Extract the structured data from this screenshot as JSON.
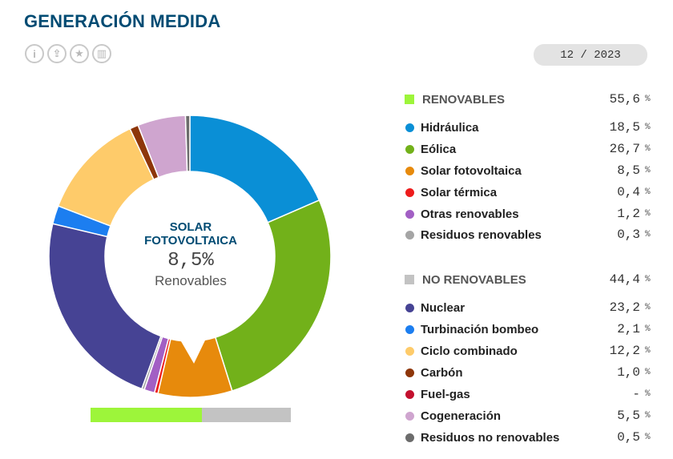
{
  "page": {
    "title": "GENERACIÓN MEDIDA",
    "period": "12 / 2023"
  },
  "toolbar": [
    {
      "name": "info-icon",
      "glyph": "i"
    },
    {
      "name": "download-icon",
      "glyph": "⇪"
    },
    {
      "name": "star-icon",
      "glyph": "★"
    },
    {
      "name": "chart-icon",
      "glyph": "▥"
    }
  ],
  "colors": {
    "title": "#004b73",
    "renovables": "#9df53a",
    "no_renovables": "#c3c3c3"
  },
  "center": {
    "name_line1": "SOLAR",
    "name_line2": "FOTOVOLTAICA",
    "value": "8,5%",
    "group": "Renovables"
  },
  "ratio": {
    "renovables": 55.6,
    "no_renovables": 44.4
  },
  "legend": {
    "groups": [
      {
        "label": "RENOVABLES",
        "value": "55,6",
        "unit": "%",
        "color": "#9df53a",
        "items": [
          {
            "label": "Hidráulica",
            "value": "18,5",
            "unit": "%",
            "color": "#0a8fd6"
          },
          {
            "label": "Eólica",
            "value": "26,7",
            "unit": "%",
            "color": "#72b11a"
          },
          {
            "label": "Solar fotovoltaica",
            "value": "8,5",
            "unit": "%",
            "color": "#e78a0c"
          },
          {
            "label": "Solar térmica",
            "value": "0,4",
            "unit": "%",
            "color": "#ee1c1c"
          },
          {
            "label": "Otras renovables",
            "value": "1,2",
            "unit": "%",
            "color": "#a25fc4"
          },
          {
            "label": "Residuos renovables",
            "value": "0,3",
            "unit": "%",
            "color": "#a5a5a5"
          }
        ]
      },
      {
        "label": "NO RENOVABLES",
        "value": "44,4",
        "unit": "%",
        "color": "#c3c3c3",
        "items": [
          {
            "label": "Nuclear",
            "value": "23,2",
            "unit": "%",
            "color": "#464394"
          },
          {
            "label": "Turbinación bombeo",
            "value": "2,1",
            "unit": "%",
            "color": "#1c7ef0"
          },
          {
            "label": "Ciclo combinado",
            "value": "12,2",
            "unit": "%",
            "color": "#fecb6a"
          },
          {
            "label": "Carbón",
            "value": "1,0",
            "unit": "%",
            "color": "#8e3609"
          },
          {
            "label": "Fuel-gas",
            "value": "-",
            "unit": "%",
            "color": "#c3102e"
          },
          {
            "label": "Cogeneración",
            "value": "5,5",
            "unit": "%",
            "color": "#cfa5cf"
          },
          {
            "label": "Residuos no renovables",
            "value": "0,5",
            "unit": "%",
            "color": "#6c6c6c"
          }
        ]
      }
    ]
  },
  "chart_data": {
    "type": "pie",
    "style": "donut",
    "highlighted": "Solar fotovoltaica",
    "categories": [
      "Hidráulica",
      "Eólica",
      "Solar fotovoltaica",
      "Solar térmica",
      "Otras renovables",
      "Residuos renovables",
      "Nuclear",
      "Turbinación bombeo",
      "Ciclo combinado",
      "Carbón",
      "Fuel-gas",
      "Cogeneración",
      "Residuos no renovables"
    ],
    "values": [
      18.5,
      26.7,
      8.5,
      0.4,
      1.2,
      0.3,
      23.2,
      2.1,
      12.2,
      1.0,
      0,
      5.5,
      0.5
    ],
    "colors": [
      "#0a8fd6",
      "#72b11a",
      "#e78a0c",
      "#ee1c1c",
      "#a25fc4",
      "#a5a5a5",
      "#464394",
      "#1c7ef0",
      "#fecb6a",
      "#8e3609",
      "#c3102e",
      "#cfa5cf",
      "#6c6c6c"
    ]
  }
}
